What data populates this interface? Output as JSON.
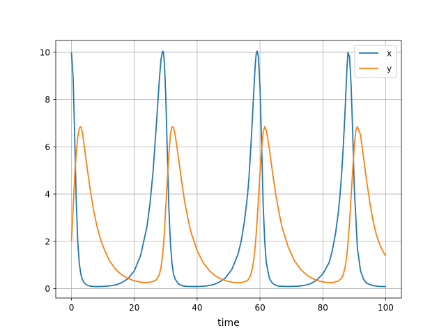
{
  "chart_data": {
    "type": "line",
    "title": "",
    "xlabel": "time",
    "ylabel": "",
    "xlim": [
      -5,
      105
    ],
    "ylim": [
      -0.4,
      10.5
    ],
    "xticks": [
      0,
      20,
      40,
      60,
      80,
      100
    ],
    "yticks": [
      0,
      2,
      4,
      6,
      8,
      10
    ],
    "grid": true,
    "legend": "top-right",
    "series": [
      {
        "name": "x",
        "color": "#1f77b4",
        "x": [
          0,
          0.5,
          1.0,
          1.5,
          2.0,
          2.5,
          3.0,
          3.5,
          4.0,
          5.0,
          6.0,
          7.0,
          8.0,
          10.0,
          12.0,
          14.0,
          16.0,
          18.0,
          20.0,
          22.0,
          24.0,
          25.0,
          26.0,
          27.0,
          27.5,
          28.0,
          28.5,
          29.0,
          29.3,
          29.6,
          30.0,
          30.5,
          31.0,
          31.5,
          32.0,
          32.5,
          33.0,
          34.0,
          35.0,
          36.0,
          37.0,
          39.0,
          41.0,
          43.0,
          45.0,
          47.0,
          49.0,
          51.0,
          53.0,
          54.0,
          55.0,
          56.0,
          56.5,
          57.0,
          57.5,
          58.0,
          58.5,
          58.8,
          59.1,
          59.5,
          60.0,
          60.5,
          61.0,
          61.5,
          62.0,
          63.0,
          64.0,
          65.0,
          66.0,
          68.0,
          70.0,
          72.0,
          74.0,
          76.0,
          78.0,
          80.0,
          82.0,
          83.0,
          84.0,
          85.0,
          85.5,
          86.0,
          86.5,
          87.0,
          87.4,
          87.7,
          88.0,
          88.5,
          89.0,
          89.5,
          90.0,
          91.0,
          92.0,
          93.0,
          94.0,
          96.0,
          98.0,
          100.0
        ],
        "y": [
          10.0,
          9.0,
          6.6,
          3.8,
          2.0,
          1.05,
          0.6,
          0.38,
          0.25,
          0.14,
          0.1,
          0.09,
          0.085,
          0.09,
          0.11,
          0.15,
          0.25,
          0.42,
          0.75,
          1.4,
          2.6,
          3.6,
          5.0,
          6.9,
          7.9,
          8.9,
          9.7,
          10.05,
          10.0,
          9.5,
          8.2,
          5.8,
          3.4,
          1.9,
          1.05,
          0.6,
          0.4,
          0.2,
          0.13,
          0.1,
          0.09,
          0.085,
          0.09,
          0.11,
          0.16,
          0.27,
          0.45,
          0.8,
          1.45,
          2.0,
          2.8,
          3.9,
          4.7,
          5.8,
          7.0,
          8.3,
          9.5,
          9.95,
          10.05,
          9.8,
          8.5,
          6.2,
          3.6,
          2.0,
          1.1,
          0.42,
          0.22,
          0.14,
          0.1,
          0.09,
          0.09,
          0.1,
          0.13,
          0.2,
          0.35,
          0.62,
          1.1,
          1.6,
          2.3,
          3.3,
          4.0,
          4.9,
          6.0,
          7.3,
          8.5,
          9.4,
          10.0,
          9.8,
          8.6,
          6.6,
          4.3,
          1.7,
          0.75,
          0.38,
          0.22,
          0.12,
          0.09,
          0.085
        ]
      },
      {
        "name": "y",
        "color": "#ff7f0e",
        "x": [
          0,
          0.5,
          1.0,
          1.5,
          2.0,
          2.5,
          3.0,
          3.5,
          4.0,
          5.0,
          6.0,
          7.0,
          8.0,
          9.0,
          10.0,
          12.0,
          14.0,
          16.0,
          18.0,
          20.0,
          22.0,
          24.0,
          26.0,
          27.0,
          28.0,
          28.5,
          29.0,
          29.5,
          30.0,
          30.5,
          31.0,
          31.5,
          32.0,
          32.5,
          33.0,
          34.0,
          35.0,
          36.0,
          37.0,
          38.0,
          40.0,
          42.0,
          44.0,
          46.0,
          48.0,
          50.0,
          52.0,
          54.0,
          56.0,
          57.0,
          57.5,
          58.0,
          58.5,
          59.0,
          59.5,
          60.0,
          60.5,
          61.0,
          61.5,
          62.0,
          63.0,
          64.0,
          65.0,
          66.0,
          67.0,
          69.0,
          71.0,
          73.0,
          75.0,
          77.0,
          79.0,
          81.0,
          83.0,
          85.0,
          86.0,
          86.5,
          87.0,
          87.5,
          88.0,
          88.5,
          89.0,
          89.5,
          90.0,
          90.5,
          91.0,
          92.0,
          93.0,
          94.0,
          95.0,
          96.0,
          97.0,
          98.0,
          99.0,
          100.0
        ],
        "y": [
          2.0,
          3.3,
          4.7,
          5.7,
          6.4,
          6.8,
          6.85,
          6.6,
          6.1,
          5.1,
          4.15,
          3.35,
          2.7,
          2.2,
          1.8,
          1.2,
          0.82,
          0.58,
          0.43,
          0.33,
          0.27,
          0.25,
          0.3,
          0.37,
          0.6,
          0.9,
          1.4,
          2.2,
          3.4,
          4.6,
          5.7,
          6.5,
          6.85,
          6.8,
          6.5,
          5.6,
          4.6,
          3.7,
          3.0,
          2.4,
          1.6,
          1.08,
          0.74,
          0.52,
          0.38,
          0.3,
          0.25,
          0.25,
          0.33,
          0.55,
          0.8,
          1.2,
          1.8,
          2.7,
          3.8,
          4.9,
          5.9,
          6.6,
          6.85,
          6.7,
          5.9,
          4.9,
          4.0,
          3.25,
          2.6,
          1.75,
          1.17,
          0.8,
          0.56,
          0.41,
          0.31,
          0.26,
          0.25,
          0.32,
          0.45,
          0.6,
          0.85,
          1.25,
          1.9,
          2.8,
          3.9,
          5.0,
          6.0,
          6.7,
          6.85,
          6.5,
          5.5,
          4.5,
          3.6,
          2.85,
          2.3,
          1.9,
          1.6,
          1.38
        ]
      }
    ]
  }
}
